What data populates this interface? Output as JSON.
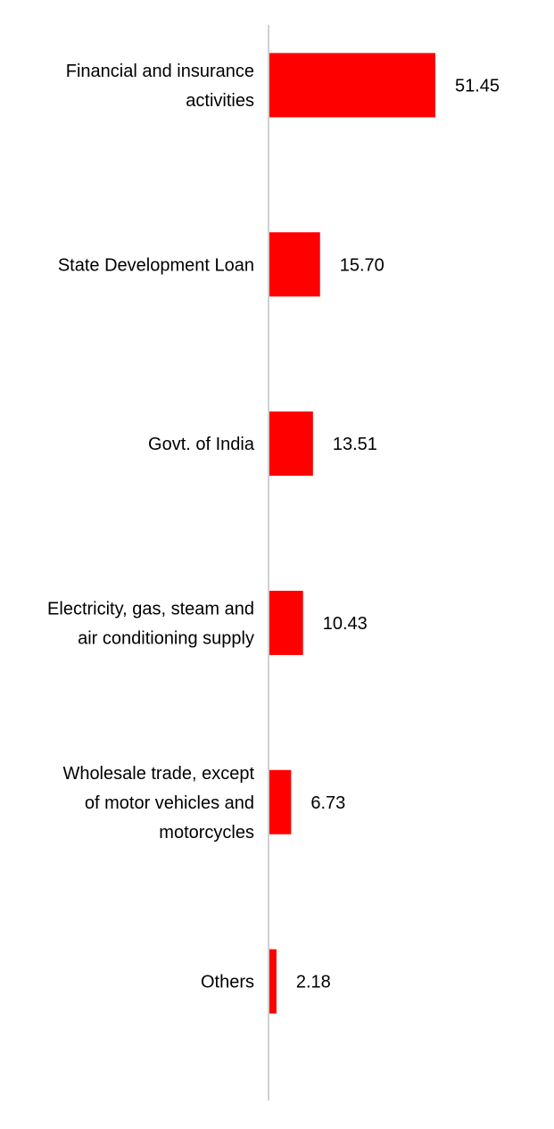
{
  "chart_data": {
    "type": "bar",
    "orientation": "horizontal",
    "categories": [
      "Financial and insurance activities",
      "State Development Loan",
      "Govt. of India",
      "Electricity, gas, steam and air conditioning supply",
      "Wholesale trade, except of motor vehicles and motorcycles",
      "Others"
    ],
    "category_lines": [
      [
        "Financial and insurance",
        "activities"
      ],
      [
        "State Development Loan"
      ],
      [
        "Govt. of India"
      ],
      [
        "Electricity, gas, steam and",
        "air conditioning supply"
      ],
      [
        "Wholesale trade, except",
        "of motor vehicles and",
        "motorcycles"
      ],
      [
        "Others"
      ]
    ],
    "values": [
      51.45,
      15.7,
      13.51,
      10.43,
      6.73,
      2.18
    ],
    "value_labels": [
      "51.45",
      "15.70",
      "13.51",
      "10.43",
      "6.73",
      "2.18"
    ],
    "xlim": [
      0,
      70
    ],
    "title": "",
    "xlabel": "",
    "ylabel": "",
    "grid": false,
    "legend": "none",
    "bar_color": "#ff0000",
    "axis_color": "#d0d0d0"
  }
}
